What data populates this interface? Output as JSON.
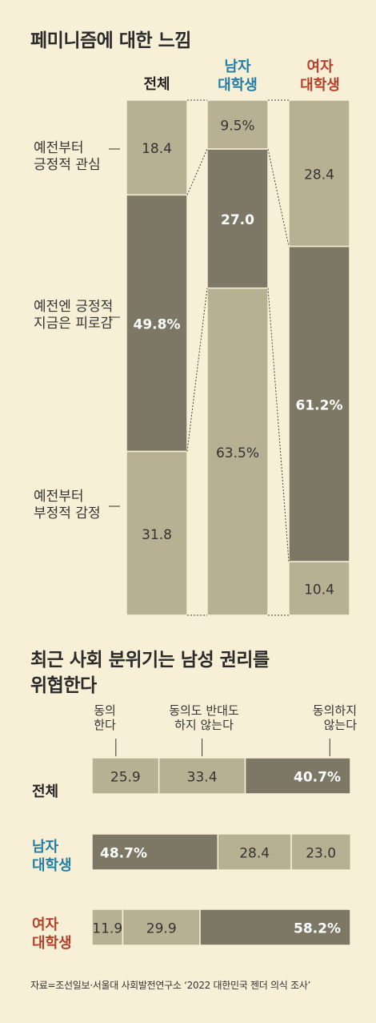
{
  "colors": {
    "light": "#b8b093",
    "dark": "#7d7866",
    "male": "#1f7fa6",
    "female": "#b8402a",
    "text_on_light": "#333333",
    "text_on_dark": "#ffffff"
  },
  "chart_data": [
    {
      "type": "bar",
      "stacked": true,
      "orientation": "vertical",
      "title": "페미니즘에 대한 느낌",
      "categories": [
        "전체",
        "남자 대학생",
        "여자 대학생"
      ],
      "category_lines": [
        [
          "전체"
        ],
        [
          "남자",
          "대학생"
        ],
        [
          "여자",
          "대학생"
        ]
      ],
      "series": [
        {
          "name": "예전부터 긍정적 관심",
          "name_lines": [
            "예전부터",
            "긍정적 관심"
          ],
          "shade": "light",
          "values": [
            18.4,
            9.5,
            28.4
          ],
          "labels": [
            "18.4",
            "9.5%",
            "28.4"
          ]
        },
        {
          "name": "예전엔 긍정적 지금은 피로감",
          "name_lines": [
            "예전엔 긍정적",
            "지금은 피로감"
          ],
          "shade": "dark",
          "values": [
            49.8,
            27.0,
            61.2
          ],
          "labels": [
            "49.8%",
            "27.0",
            "61.2%"
          ]
        },
        {
          "name": "예전부터 부정적 감정",
          "name_lines": [
            "예전부터",
            "부정적 감정"
          ],
          "shade": "light",
          "values": [
            31.8,
            63.5,
            10.4
          ],
          "labels": [
            "31.8",
            "63.5%",
            "10.4"
          ]
        }
      ],
      "ylim": [
        0,
        100
      ]
    },
    {
      "type": "bar",
      "stacked": true,
      "orientation": "horizontal",
      "title_lines": [
        "최근 사회 분위기는 남성 권리를",
        "위협한다"
      ],
      "categories": [
        "전체",
        "남자 대학생",
        "여자 대학생"
      ],
      "category_lines": [
        [
          "전체"
        ],
        [
          "남자",
          "대학생"
        ],
        [
          "여자",
          "대학생"
        ]
      ],
      "series": [
        {
          "name": "동의한다",
          "name_lines": [
            "동의",
            "한다"
          ],
          "values": [
            25.9,
            48.7,
            11.9
          ],
          "labels": [
            "25.9",
            "48.7%",
            "11.9"
          ]
        },
        {
          "name": "동의도 반대도 하지 않는다",
          "name_lines": [
            "동의도 반대도",
            "하지 않는다"
          ],
          "values": [
            33.4,
            28.4,
            29.9
          ],
          "labels": [
            "33.4",
            "28.4",
            "29.9"
          ]
        },
        {
          "name": "동의하지 않는다",
          "name_lines": [
            "동의하지",
            "않는다"
          ],
          "values": [
            40.7,
            23.0,
            58.2
          ],
          "labels": [
            "40.7%",
            "23.0",
            "58.2%"
          ]
        }
      ],
      "shades": [
        [
          "light",
          "light",
          "dark"
        ],
        [
          "dark",
          "light",
          "light"
        ],
        [
          "light",
          "light",
          "dark"
        ]
      ],
      "xlim": [
        0,
        100
      ]
    }
  ],
  "source": "자료=조선일보·서울대 사회발전연구소 ‘2022 대한민국 젠더 의식 조사’"
}
